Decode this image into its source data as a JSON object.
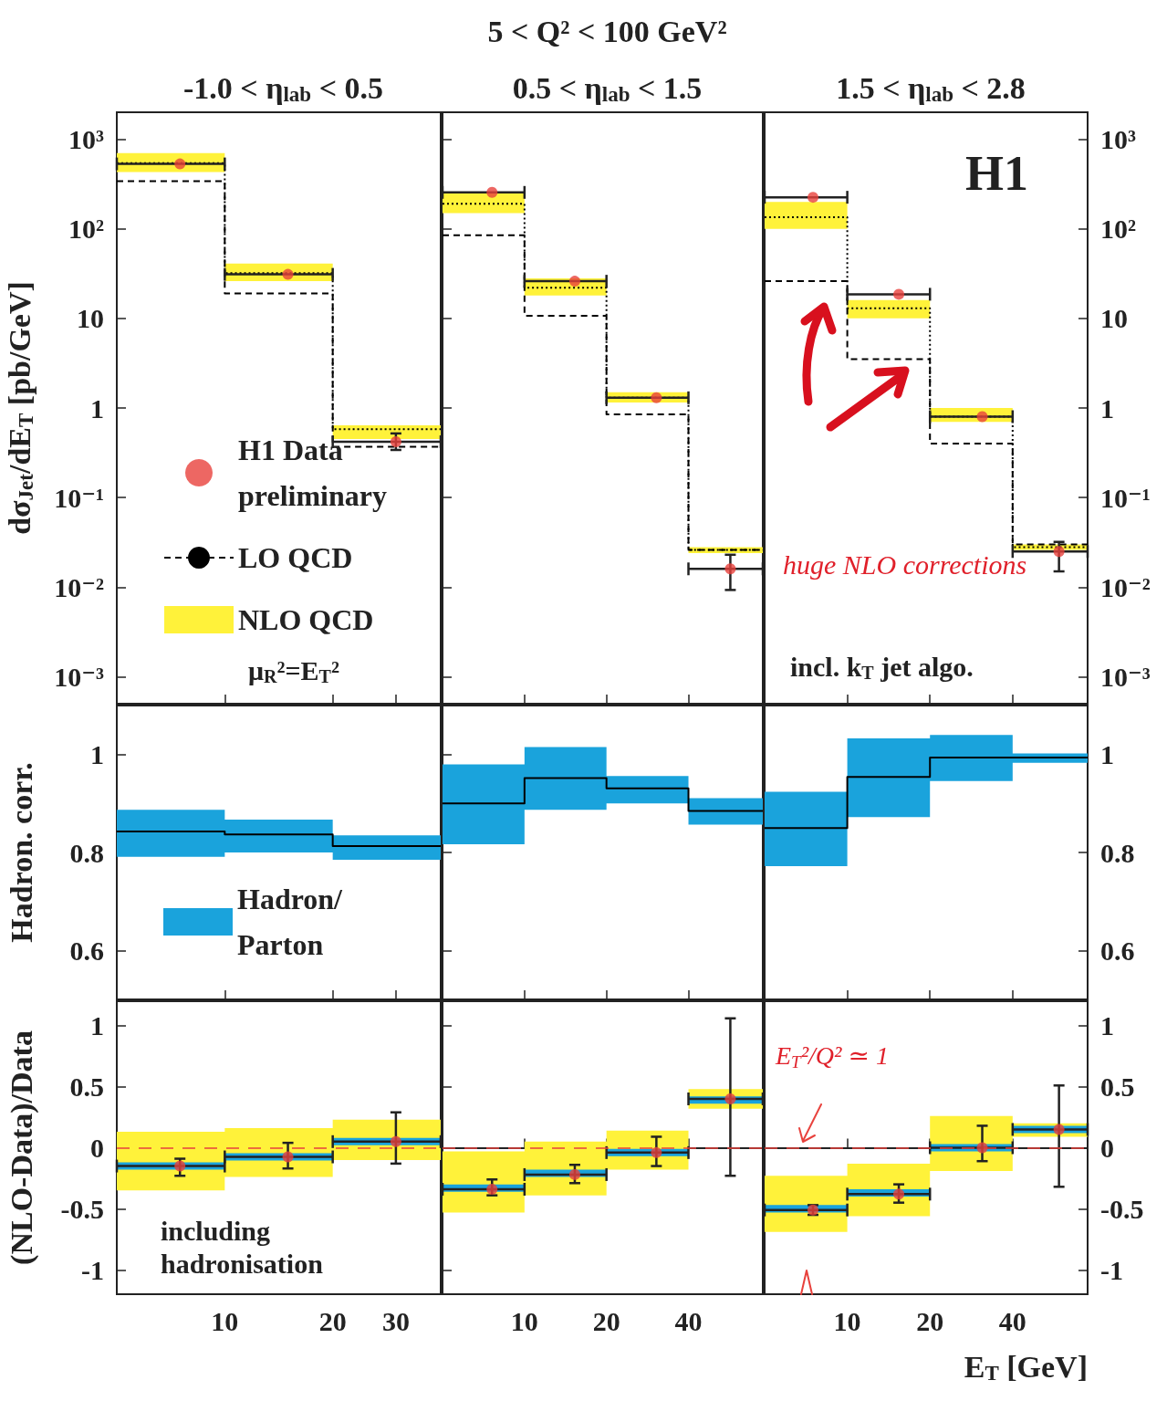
{
  "chart_data": [
    {
      "type": "step",
      "subtitle": "-1.0 < η$_{lab}$ < 0.5",
      "ylabel": "dσ$_{Jet}$/dE$_{T}$ [pb/GeV]",
      "x": [
        5,
        10,
        20,
        40
      ],
      "xlim": [
        5,
        40
      ],
      "xticks": [
        10,
        20,
        30
      ],
      "ylim": [
        0.0005,
        2000
      ],
      "yticks": [
        {
          "value": 1000,
          "label": "10³"
        },
        {
          "value": 100,
          "label": "10²"
        },
        10,
        1,
        {
          "value": 0.1,
          "label": "10⁻¹"
        },
        {
          "value": 0.01,
          "label": "10⁻²"
        },
        {
          "value": 0.001,
          "label": "10⁻³"
        }
      ],
      "log": "xy",
      "tick_labels": "y",
      "legend": "bottom left",
      "grid": false,
      "annotations": [
        "μ$_{R}$²=E$_{T}$²"
      ],
      "series": [
        {
          "type": "scatter",
          "name": "H1 Data preliminary",
          "color": "#e8413c",
          "marker": "circle",
          "x": [
            7.5,
            15,
            30
          ],
          "values": [
            530,
            31,
            0.42
          ],
          "errors": [
            null,
            null,
            [
              0.34,
              0.52
            ]
          ],
          "xerrors": [
            [
              5,
              10
            ],
            [
              10,
              20
            ],
            [
              20,
              40
            ]
          ]
        },
        {
          "name": "LO QCD",
          "color": "#000000",
          "line_style": "dashed",
          "values": [
            340,
            19,
            0.37,
            0.37
          ]
        },
        {
          "name": "NLO QCD",
          "color": "#fff23a",
          "values": [
            null,
            null,
            null,
            null
          ],
          "lower": [
            430,
            26,
            0.45,
            0.45
          ],
          "upper": [
            700,
            41,
            0.64,
            0.64
          ]
        },
        {
          "color": "#000000",
          "line_style": "dotted",
          "values": [
            540,
            32,
            0.58,
            0.58
          ]
        }
      ]
    },
    {
      "type": "step",
      "title": "5 < Q² < 100 GeV²",
      "subtitle": "0.5 < η$_{lab}$ < 1.5",
      "x": [
        5,
        10,
        20,
        40,
        75
      ],
      "xlim": [
        5,
        75
      ],
      "xticks": [
        10,
        20,
        40
      ],
      "ylim": [
        0.0005,
        2000
      ],
      "yticks": [
        1000,
        100,
        10,
        1,
        0.1,
        0.01,
        0.001
      ],
      "log": "xy",
      "tick_labels": false,
      "grid": false,
      "series": [
        {
          "type": "scatter",
          "color": "#e8413c",
          "marker": "circle",
          "x": [
            7.6,
            15.3,
            30.5,
            57
          ],
          "values": [
            255,
            26,
            1.3,
            0.016
          ],
          "errors": [
            null,
            null,
            null,
            [
              0.0093,
              0.023
            ]
          ],
          "xerrors": [
            [
              5,
              10
            ],
            [
              10,
              20
            ],
            [
              20,
              40
            ],
            [
              40,
              75
            ]
          ]
        },
        {
          "color": "#000000",
          "line_style": "dashed",
          "values": [
            85,
            10.7,
            0.85,
            0.026,
            0.026
          ]
        },
        {
          "color": "#fff23a",
          "values": [
            null,
            null,
            null,
            null,
            null
          ],
          "lower": [
            150,
            18,
            1.15,
            0.024,
            0.024
          ],
          "upper": [
            255,
            28,
            1.5,
            0.028,
            0.028
          ]
        },
        {
          "color": "#000000",
          "line_style": "dotted",
          "values": [
            190,
            22,
            1.3,
            0.026,
            0.026
          ]
        }
      ]
    },
    {
      "type": "step",
      "subtitle": "1.5 < η$_{lab}$ < 2.8",
      "x": [
        5,
        10,
        20,
        40,
        75
      ],
      "xlim": [
        5,
        75
      ],
      "xticks": [
        10,
        20,
        40
      ],
      "ylim": [
        0.0005,
        2000
      ],
      "yticks": [
        {
          "value": 1000,
          "label": "10³"
        },
        {
          "value": 100,
          "label": "10²"
        },
        10,
        1,
        {
          "value": 0.1,
          "label": "10⁻¹"
        },
        {
          "value": 0.01,
          "label": "10⁻²"
        },
        {
          "value": 0.001,
          "label": "10⁻³"
        }
      ],
      "log": "xy",
      "tick_labels": "y",
      "grid": false,
      "annotations": [
        "H1",
        "incl. k$_{T}$ jet algo.",
        "huge NLO corrections"
      ],
      "series": [
        {
          "type": "scatter",
          "color": "#e8413c",
          "marker": "circle",
          "x": [
            7.5,
            15.4,
            31,
            59
          ],
          "values": [
            225,
            18.6,
            0.8,
            0.025
          ],
          "errors": [
            null,
            null,
            null,
            [
              0.015,
              0.032
            ]
          ],
          "xerrors": [
            [
              5,
              10
            ],
            [
              10,
              20
            ],
            [
              20,
              40
            ],
            [
              40,
              75
            ]
          ]
        },
        {
          "color": "#000000",
          "line_style": "dashed",
          "values": [
            26,
            3.5,
            0.4,
            0.03,
            0.03
          ]
        },
        {
          "color": "#fff23a",
          "values": [
            null,
            null,
            null,
            null,
            null
          ],
          "lower": [
            100,
            10,
            0.7,
            0.026,
            0.026
          ],
          "upper": [
            200,
            16,
            1.0,
            0.03,
            0.03
          ]
        },
        {
          "color": "#000000",
          "line_style": "dotted",
          "values": [
            135,
            13,
            0.8,
            0.028,
            0.028
          ]
        }
      ]
    },
    {
      "type": "step",
      "ylabel": "Hadron. corr.",
      "x": [
        5,
        10,
        20,
        40
      ],
      "xlim": [
        5,
        40
      ],
      "xticks": [
        10,
        20,
        30
      ],
      "ylim": [
        0.5,
        1.1
      ],
      "yticks": [
        0.6,
        0.8,
        1
      ],
      "log": "x",
      "tick_labels": "y",
      "legend": "bottom left",
      "grid": false,
      "series": [
        {
          "name": "Hadron/Parton",
          "color": "#1aa3dc",
          "values": [
            null,
            null,
            null,
            null
          ],
          "lower": [
            0.791,
            0.8,
            0.785,
            0.785
          ],
          "upper": [
            0.887,
            0.867,
            0.835,
            0.835
          ]
        },
        {
          "color": "#000000",
          "values": [
            0.843,
            0.837,
            0.813,
            0.813
          ]
        }
      ]
    },
    {
      "type": "step",
      "x": [
        5,
        10,
        20,
        40,
        75
      ],
      "xlim": [
        5,
        75
      ],
      "xticks": [
        10,
        20,
        40
      ],
      "ylim": [
        0.5,
        1.1
      ],
      "yticks": [
        0.6,
        0.8,
        1
      ],
      "log": "x",
      "tick_labels": false,
      "grid": false,
      "series": [
        {
          "color": "#1aa3dc",
          "values": [
            null,
            null,
            null,
            null,
            null
          ],
          "lower": [
            0.817,
            0.887,
            0.9,
            0.857,
            0.857
          ],
          "upper": [
            0.98,
            1.015,
            0.956,
            0.911,
            0.911
          ]
        },
        {
          "color": "#000000",
          "values": [
            0.9,
            0.952,
            0.931,
            0.885,
            0.885
          ]
        }
      ]
    },
    {
      "type": "step",
      "x": [
        5,
        10,
        20,
        40,
        75
      ],
      "xlim": [
        5,
        75
      ],
      "xticks": [
        10,
        20,
        40
      ],
      "ylim": [
        0.5,
        1.1
      ],
      "yticks": [
        0.6,
        0.8,
        1
      ],
      "log": "x",
      "tick_labels": "y",
      "grid": false,
      "series": [
        {
          "color": "#1aa3dc",
          "values": [
            null,
            null,
            null,
            null,
            null
          ],
          "lower": [
            0.772,
            0.872,
            0.946,
            0.983,
            0.983
          ],
          "upper": [
            0.924,
            1.033,
            1.04,
            1.002,
            1.002
          ]
        },
        {
          "color": "#000000",
          "values": [
            0.85,
            0.954,
            0.994,
            0.994,
            0.994
          ]
        }
      ]
    },
    {
      "type": "step",
      "ylabel": "(NLO-Data)/Data",
      "x": [
        5,
        10,
        20,
        40
      ],
      "xlim": [
        5,
        40
      ],
      "xticks": [
        10,
        20,
        30
      ],
      "ylim": [
        -1.2,
        1.2
      ],
      "yticks": [
        -1,
        -0.5,
        0,
        0.5,
        1
      ],
      "log": "x",
      "grid": false,
      "annotations": [
        "including hadronisation"
      ],
      "ref_lines": [
        {
          "axis": "y",
          "value": 0,
          "color": "#e8413c",
          "line_style": "dashed"
        }
      ],
      "series": [
        {
          "color": "#fff23a",
          "values": [
            null,
            null,
            null,
            null
          ],
          "lower": [
            -0.35,
            -0.24,
            -0.1,
            -0.1
          ],
          "upper": [
            0.13,
            0.16,
            0.23,
            0.23
          ]
        },
        {
          "color": "#1aa3dc",
          "values": [
            null,
            null,
            null,
            null
          ],
          "lower": [
            -0.18,
            -0.105,
            0.02,
            0.02
          ],
          "upper": [
            -0.12,
            -0.045,
            0.08,
            0.08
          ]
        },
        {
          "type": "scatter",
          "color": "#e8413c",
          "marker": "circle",
          "x": [
            7.5,
            15,
            30
          ],
          "values": [
            -0.15,
            -0.075,
            0.05
          ],
          "errors": [
            [
              -0.23,
              -0.09
            ],
            [
              -0.17,
              0.04
            ],
            [
              -0.13,
              0.29
            ]
          ],
          "xerrors": [
            [
              5,
              10
            ],
            [
              10,
              20
            ],
            [
              20,
              40
            ]
          ]
        }
      ]
    },
    {
      "type": "step",
      "x": [
        5,
        10,
        20,
        40,
        75
      ],
      "xlim": [
        5,
        75
      ],
      "xticks": [
        10,
        20,
        40
      ],
      "ylim": [
        -1.2,
        1.2
      ],
      "yticks": [
        -1,
        -0.5,
        0,
        0.5,
        1
      ],
      "log": "x",
      "tick_labels": "x",
      "grid": false,
      "ref_lines": [
        {
          "axis": "y",
          "value": 0,
          "color": "#e8413c",
          "line_style": "dashed"
        }
      ],
      "series": [
        {
          "color": "#fff23a",
          "values": [
            null,
            null,
            null,
            null,
            null
          ],
          "lower": [
            -0.53,
            -0.39,
            -0.18,
            0.32,
            0.32
          ],
          "upper": [
            -0.03,
            0.05,
            0.14,
            0.48,
            0.48
          ]
        },
        {
          "color": "#1aa3dc",
          "values": [
            null,
            null,
            null,
            null,
            null
          ],
          "lower": [
            -0.36,
            -0.24,
            -0.07,
            0.36,
            0.36
          ],
          "upper": [
            -0.3,
            -0.18,
            -0.01,
            0.42,
            0.42
          ]
        },
        {
          "type": "scatter",
          "color": "#e8413c",
          "marker": "circle",
          "x": [
            7.6,
            15.3,
            30.5,
            57
          ],
          "values": [
            -0.34,
            -0.22,
            -0.04,
            0.4
          ],
          "errors": [
            [
              -0.39,
              -0.26
            ],
            [
              -0.29,
              -0.14
            ],
            [
              -0.15,
              0.09
            ],
            [
              -0.23,
              1.06
            ]
          ],
          "xerrors": [
            [
              5,
              10
            ],
            [
              10,
              20
            ],
            [
              20,
              40
            ],
            [
              40,
              75
            ]
          ]
        }
      ]
    },
    {
      "type": "step",
      "xlabel": "E$_{T}$ [GeV]",
      "x": [
        5,
        10,
        20,
        40,
        75
      ],
      "xlim": [
        5,
        75
      ],
      "xticks": [
        10,
        20,
        40
      ],
      "ylim": [
        -1.2,
        1.2
      ],
      "yticks": [
        -1,
        -0.5,
        0,
        0.5,
        1
      ],
      "log": "x",
      "grid": false,
      "annotations": [
        "E$_{T}$²/Q² ≃ 1"
      ],
      "ref_lines": [
        {
          "axis": "y",
          "value": 0,
          "color": "#e8413c",
          "line_style": "dashed"
        }
      ],
      "series": [
        {
          "color": "#fff23a",
          "values": [
            null,
            null,
            null,
            null,
            null
          ],
          "lower": [
            -0.69,
            -0.56,
            -0.19,
            0.09,
            0.09
          ],
          "upper": [
            -0.23,
            -0.13,
            0.26,
            0.2,
            0.2
          ]
        },
        {
          "color": "#1aa3dc",
          "values": [
            null,
            null,
            null,
            null,
            null
          ],
          "lower": [
            -0.53,
            -0.4,
            -0.03,
            0.12,
            0.12
          ],
          "upper": [
            -0.47,
            -0.34,
            0.03,
            0.18,
            0.18
          ]
        },
        {
          "type": "scatter",
          "color": "#e8413c",
          "marker": "circle",
          "x": [
            7.5,
            15.4,
            31,
            59
          ],
          "values": [
            -0.51,
            -0.38,
            0.0,
            0.15
          ],
          "errors": [
            [
              -0.55,
              -0.47
            ],
            [
              -0.45,
              -0.3
            ],
            [
              -0.11,
              0.18
            ],
            [
              -0.32,
              0.51
            ]
          ],
          "xerrors": [
            [
              5,
              10
            ],
            [
              10,
              20
            ],
            [
              20,
              40
            ],
            [
              40,
              75
            ]
          ]
        }
      ]
    }
  ]
}
